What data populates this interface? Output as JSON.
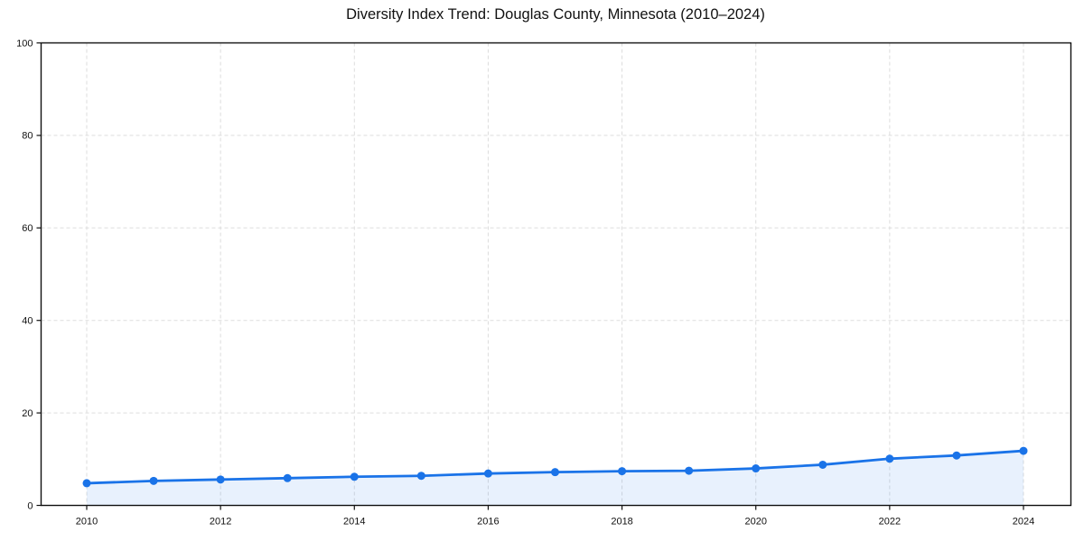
{
  "chart_data": {
    "type": "line",
    "title": "Diversity Index Trend: Douglas County, Minnesota (2010–2024)",
    "xlabel": "",
    "ylabel": "",
    "x": [
      2010,
      2011,
      2012,
      2013,
      2014,
      2015,
      2016,
      2017,
      2018,
      2019,
      2020,
      2021,
      2022,
      2023,
      2024
    ],
    "series": [
      {
        "name": "Diversity Index",
        "values": [
          4.8,
          5.3,
          5.6,
          5.9,
          6.2,
          6.4,
          6.9,
          7.2,
          7.4,
          7.5,
          8.0,
          8.8,
          10.1,
          10.8,
          11.8
        ]
      }
    ],
    "ylim": [
      0,
      100
    ],
    "y_ticks": [
      0,
      20,
      40,
      60,
      80,
      100
    ],
    "x_ticks": [
      2010,
      2012,
      2014,
      2016,
      2018,
      2020,
      2022,
      2024
    ],
    "grid": "dashed",
    "grid_on": true,
    "legend": "none",
    "marker": "circle",
    "area_fill": true,
    "colors": {
      "line": "#1a73e8",
      "fill": "#1a73e8",
      "fill_opacity": 0.1,
      "grid": "#dddddd",
      "axis": "#111111",
      "tick_text": "#111111"
    }
  }
}
